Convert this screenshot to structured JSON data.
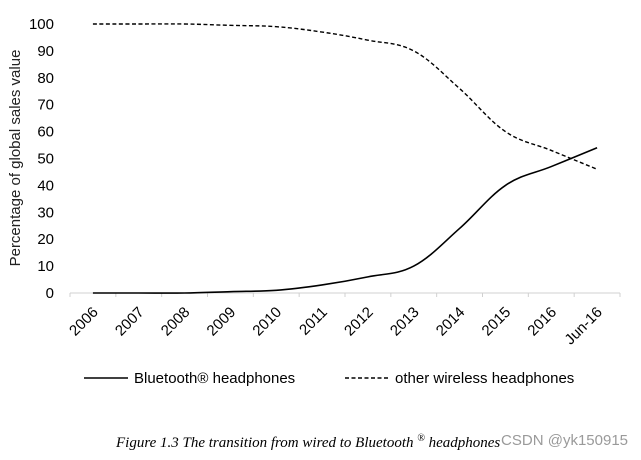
{
  "chart_data": {
    "type": "line",
    "ylabel": "Percentage of global sales value",
    "xlabel": "",
    "ylim": [
      0,
      100
    ],
    "yticks": [
      0,
      10,
      20,
      30,
      40,
      50,
      60,
      70,
      80,
      90,
      100
    ],
    "categories": [
      "2006",
      "2007",
      "2008",
      "2009",
      "2010",
      "2011",
      "2012",
      "2013",
      "2014",
      "2015",
      "2016",
      "Jun-16"
    ],
    "grid": false,
    "legend_position": "bottom",
    "series": [
      {
        "name": "Bluetooth® headphones",
        "style": "solid",
        "color": "#000000",
        "values": [
          0,
          0,
          0,
          0.5,
          1,
          3,
          6,
          10,
          24,
          40,
          47,
          54
        ]
      },
      {
        "name": "other wireless headphones",
        "style": "dashed",
        "color": "#000000",
        "values": [
          100,
          100,
          100,
          99.5,
          99,
          97,
          94,
          90,
          76,
          60,
          53,
          46
        ]
      }
    ]
  },
  "caption": {
    "prefix": "Figure 1.3  The transition from wired to Bluetooth",
    "superscript": "®",
    "suffix": " headphones"
  },
  "watermark": "CSDN @yk150915"
}
